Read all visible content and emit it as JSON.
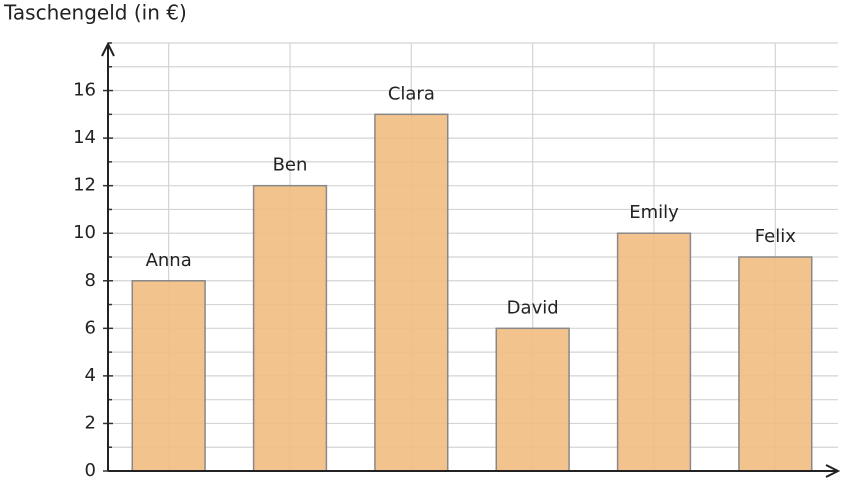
{
  "chart_data": {
    "type": "bar",
    "title": "Taschengeld (in €)",
    "categories": [
      "Anna",
      "Ben",
      "Clara",
      "David",
      "Emily",
      "Felix"
    ],
    "values": [
      8,
      12,
      15,
      6,
      10,
      9
    ],
    "color": "#f2bc82",
    "ylim": [
      0,
      18
    ],
    "yticks": [
      0,
      2,
      4,
      6,
      8,
      10,
      12,
      14,
      16
    ],
    "minor_yticks": [
      1,
      3,
      5,
      7,
      9,
      11,
      13,
      15,
      17,
      18
    ],
    "grid": true
  }
}
